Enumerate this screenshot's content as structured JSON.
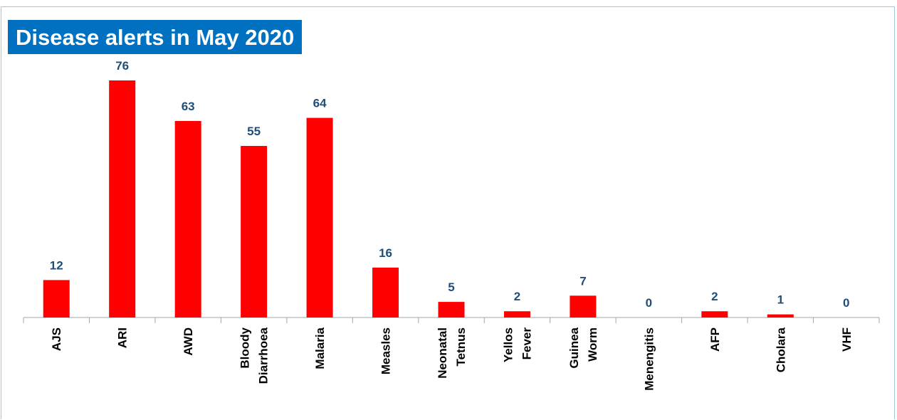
{
  "chart_data": {
    "type": "bar",
    "title": "Disease alerts in May 2020",
    "categories": [
      [
        "AJS"
      ],
      [
        "ARI"
      ],
      [
        "AWD"
      ],
      [
        "Bloody",
        "Diarrhoea"
      ],
      [
        "Malaria"
      ],
      [
        "Measles"
      ],
      [
        "Neonatal",
        "Tetnus"
      ],
      [
        "Yellos",
        "Fever"
      ],
      [
        "Guinea",
        "Worm"
      ],
      [
        "Menengitis"
      ],
      [
        "AFP"
      ],
      [
        "Cholara"
      ],
      [
        "VHF"
      ]
    ],
    "values": [
      12,
      76,
      63,
      55,
      64,
      16,
      5,
      2,
      7,
      0,
      2,
      1,
      0
    ],
    "ylim": [
      0,
      76
    ],
    "grid": false,
    "data_labels": true,
    "colors": {
      "bar": "#ff0000",
      "label": "#1f4e79",
      "title_bg": "#0070c0",
      "title_text": "#ffffff"
    }
  }
}
